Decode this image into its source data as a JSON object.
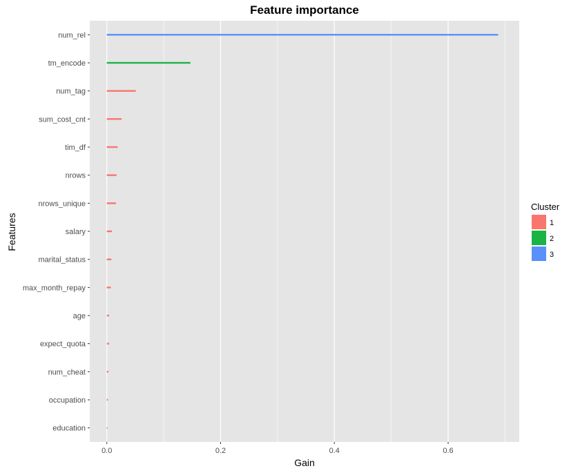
{
  "chart_data": {
    "type": "bar",
    "orientation": "horizontal",
    "title": "Feature importance",
    "xlabel": "Gain",
    "ylabel": "Features",
    "xlim": [
      -0.03,
      0.725
    ],
    "xticks": [
      0.0,
      0.2,
      0.4,
      0.6
    ],
    "xtick_labels": [
      "0.0",
      "0.2",
      "0.4",
      "0.6"
    ],
    "grid": true,
    "categories": [
      "num_rel",
      "tm_encode",
      "num_tag",
      "sum_cost_cnt",
      "tim_df",
      "nrows",
      "nrows_unique",
      "salary",
      "marital_status",
      "max_month_repay",
      "age",
      "expect_quota",
      "num_cheat",
      "occupation",
      "education"
    ],
    "values": [
      0.688,
      0.147,
      0.051,
      0.026,
      0.019,
      0.017,
      0.016,
      0.009,
      0.008,
      0.007,
      0.004,
      0.004,
      0.003,
      0.002,
      0.001
    ],
    "clusters": [
      "3",
      "2",
      "1",
      "1",
      "1",
      "1",
      "1",
      "1",
      "1",
      "1",
      "1",
      "1",
      "1",
      "1",
      "1"
    ],
    "legend": {
      "title": "Cluster",
      "position": "right",
      "entries": [
        {
          "label": "1",
          "color": "#f8766d"
        },
        {
          "label": "2",
          "color": "#19b445"
        },
        {
          "label": "3",
          "color": "#5b8ff9"
        }
      ]
    },
    "panel_color": "#e5e5e5",
    "grid_color": "#ffffff"
  }
}
